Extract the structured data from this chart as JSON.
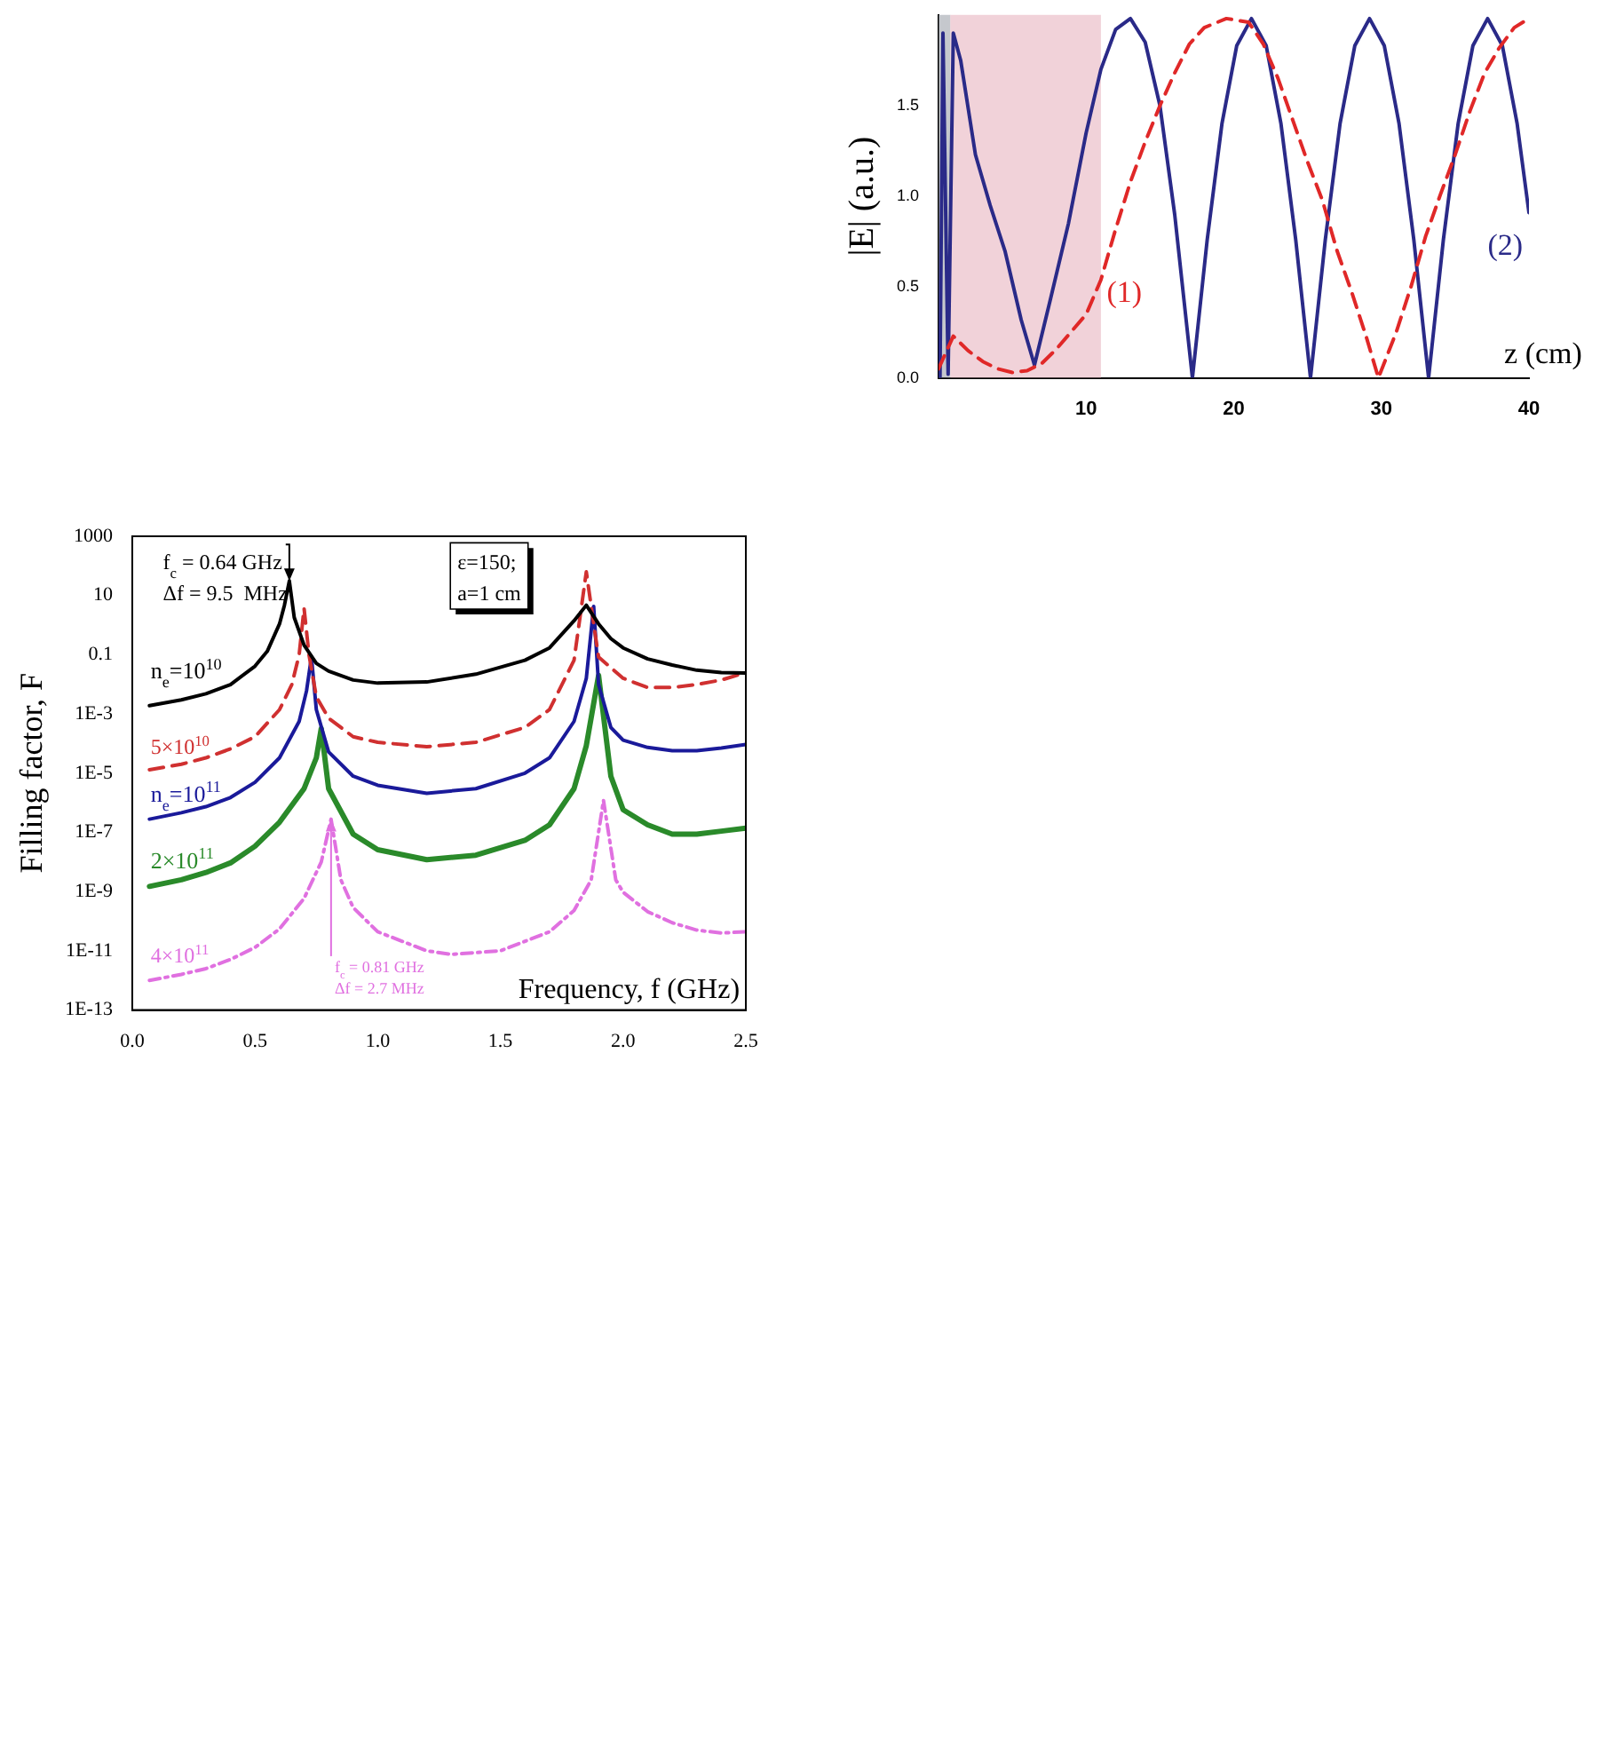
{
  "chart_data": [
    {
      "type": "line",
      "xlabel": "Frequency, f (GHz)",
      "ylabel": "Filling factor, F",
      "log": "y",
      "xlim": [
        0,
        2.5
      ],
      "xticks": [
        {
          "value": 0,
          "label": "0.0"
        },
        {
          "value": 0.5,
          "label": "0.5"
        },
        {
          "value": 1,
          "label": "1.0"
        },
        {
          "value": 1.5,
          "label": "1.5"
        },
        {
          "value": 2,
          "label": "2.0"
        },
        {
          "value": 2.5,
          "label": "2.5"
        }
      ],
      "ylim": [
        1e-13,
        1000
      ],
      "yticks": [
        {
          "value": 1e-13,
          "label": "1E-13"
        },
        {
          "value": 1e-11,
          "label": "1E-11"
        },
        {
          "value": 1e-09,
          "label": "1E-9"
        },
        {
          "value": 1e-07,
          "label": "1E-7"
        },
        {
          "value": 1e-05,
          "label": "1E-5"
        },
        {
          "value": 0.001,
          "label": "1E-3"
        },
        0.1,
        10,
        1000
      ],
      "grid": false,
      "legend": false,
      "marker": "none",
      "annotations": [
        {
          "text": "f$_{c}$ = 0.64 GHz",
          "x": 0.64,
          "y": 31
        },
        "Δf = 9.5  MHz",
        "ε=150;",
        "a=1 cm",
        {
          "text": "f$_{c}$ = 0.81 GHz",
          "x": 0.81,
          "y": 2.8e-07
        },
        "Δf = 2.7 MHz"
      ],
      "series": [
        {
          "name": "n$_{e}$=10$^{10}$",
          "color": "#000000",
          "line_style": "solid",
          "x": [
            0.07,
            0.2,
            0.3,
            0.4,
            0.5,
            0.55,
            0.6,
            0.62,
            0.64,
            0.66,
            0.7,
            0.75,
            0.8,
            0.9,
            1.0,
            1.2,
            1.4,
            1.6,
            1.7,
            1.8,
            1.85,
            1.9,
            1.95,
            2.0,
            2.1,
            2.2,
            2.3,
            2.4,
            2.5
          ],
          "values": [
            0.0019,
            0.003,
            0.0048,
            0.0098,
            0.041,
            0.13,
            1.1,
            4.7,
            31,
            1.8,
            0.21,
            0.051,
            0.028,
            0.014,
            0.011,
            0.012,
            0.022,
            0.065,
            0.17,
            1.4,
            4.7,
            1.1,
            0.35,
            0.17,
            0.072,
            0.045,
            0.03,
            0.025,
            0.024
          ]
        },
        {
          "name": "5×10$^{10}$",
          "color": "#d03030",
          "line_style": "dashed",
          "x": [
            0.07,
            0.2,
            0.3,
            0.4,
            0.5,
            0.6,
            0.65,
            0.68,
            0.7,
            0.72,
            0.75,
            0.8,
            0.9,
            1.0,
            1.2,
            1.4,
            1.6,
            1.7,
            1.8,
            1.85,
            1.88,
            1.9,
            2.0,
            2.1,
            2.2,
            2.3,
            2.4,
            2.5
          ],
          "values": [
            1.3e-05,
            2e-05,
            3.3e-05,
            6.6e-05,
            0.00017,
            0.0014,
            0.0098,
            0.1,
            3.7,
            0.1,
            0.0038,
            0.00072,
            0.00017,
            0.00011,
            7.8e-05,
            0.00011,
            0.00035,
            0.0014,
            0.065,
            63,
            1.1,
            0.083,
            0.016,
            0.0078,
            0.0078,
            0.0098,
            0.014,
            0.025
          ]
        },
        {
          "name": "n$_{e}$=10$^{11}$",
          "color": "#1a1a9a",
          "line_style": "solid",
          "x": [
            0.07,
            0.2,
            0.3,
            0.4,
            0.5,
            0.6,
            0.68,
            0.71,
            0.73,
            0.75,
            0.8,
            0.9,
            1.0,
            1.2,
            1.4,
            1.6,
            1.7,
            1.8,
            1.85,
            1.88,
            1.9,
            1.95,
            2.0,
            2.1,
            2.2,
            2.3,
            2.4,
            2.5
          ],
          "values": [
            2.8e-07,
            4.6e-07,
            7.4e-07,
            1.5e-06,
            4.9e-06,
            3.3e-05,
            0.00056,
            0.006,
            0.083,
            0.0014,
            5.2e-05,
            7.9e-06,
            3.9e-06,
            2.1e-06,
            3e-06,
            1e-05,
            3.3e-05,
            0.00056,
            0.016,
            4.3,
            0.0098,
            0.00035,
            0.00013,
            7.4e-05,
            5.7e-05,
            5.7e-05,
            7.1e-05,
            9.3e-05
          ]
        },
        {
          "name": "2×10$^{11}$",
          "color": "#2a8a2a",
          "line_style": "solid",
          "x": [
            0.07,
            0.2,
            0.3,
            0.4,
            0.5,
            0.6,
            0.7,
            0.75,
            0.77,
            0.8,
            0.9,
            1.0,
            1.2,
            1.4,
            1.6,
            1.7,
            1.8,
            1.85,
            1.9,
            1.95,
            2.0,
            2.1,
            2.2,
            2.3,
            2.4,
            2.5
          ],
          "values": [
            1.5e-09,
            2.5e-09,
            4.4e-09,
            9.3e-09,
            3.4e-08,
            2.2e-07,
            3e-06,
            3.3e-05,
            0.00032,
            3e-06,
            8.7e-08,
            2.6e-08,
            1.2e-08,
            1.7e-08,
            5.4e-08,
            1.8e-07,
            3e-06,
            8.5e-05,
            0.02,
            7.9e-06,
            5.8e-07,
            1.8e-07,
            8.7e-08,
            8.7e-08,
            1.1e-07,
            1.4e-07
          ]
        },
        {
          "name": "4×10$^{11}$",
          "color": "#e070e0",
          "line_style": "dotted",
          "x": [
            0.07,
            0.2,
            0.3,
            0.4,
            0.5,
            0.6,
            0.7,
            0.77,
            0.81,
            0.85,
            0.9,
            1.0,
            1.2,
            1.3,
            1.5,
            1.7,
            1.8,
            1.87,
            1.92,
            1.97,
            2.0,
            2.1,
            2.2,
            2.3,
            2.4,
            2.5
          ],
          "values": [
            1e-12,
            1.6e-12,
            2.5e-12,
            5.1e-12,
            1.3e-11,
            5.5e-11,
            5.9e-10,
            1e-08,
            2.8e-07,
            2.5e-09,
            2.9e-10,
            4.4e-11,
            1e-11,
            7.6e-12,
            1e-11,
            4.4e-11,
            2.3e-10,
            2.5e-09,
            1.2e-06,
            2.5e-09,
            9.5e-10,
            2.1e-10,
            8.9e-11,
            5e-11,
            4e-11,
            4.4e-11
          ]
        }
      ]
    },
    {
      "type": "line",
      "xlabel": "z (cm)",
      "ylabel": "|E| (a.u.)",
      "xlim": [
        0,
        40
      ],
      "xticks": [
        10,
        20,
        30,
        40
      ],
      "ylim": [
        0,
        2.0
      ],
      "yticks": [
        {
          "value": 0,
          "label": "0.0"
        },
        {
          "value": 0.5,
          "label": "0.5"
        },
        {
          "value": 1,
          "label": "1.0"
        },
        {
          "value": 1.5,
          "label": "1.5"
        }
      ],
      "grid": false,
      "legend": false,
      "marker": "none",
      "bands": [
        {
          "axis": "x",
          "from": 0,
          "to": 0.8,
          "color": "#9ea4ac"
        },
        {
          "axis": "x",
          "from": 0.8,
          "to": 11,
          "color": "#e8b4bf"
        }
      ],
      "series": [
        {
          "name": "(1)",
          "color": "#e02828",
          "line_style": "dashed",
          "x": [
            0,
            1,
            2,
            3,
            4,
            5,
            6,
            7,
            8,
            10,
            11,
            12,
            13,
            14,
            15,
            16,
            17,
            18,
            19.5,
            21,
            22,
            23,
            24,
            25,
            26,
            27,
            28,
            29,
            29.8,
            31,
            32,
            33,
            34,
            35,
            36,
            37,
            38,
            39,
            40
          ],
          "values": [
            0.05,
            0.23,
            0.15,
            0.09,
            0.05,
            0.03,
            0.04,
            0.08,
            0.16,
            0.35,
            0.54,
            0.82,
            1.08,
            1.3,
            1.5,
            1.68,
            1.84,
            1.93,
            1.98,
            1.96,
            1.84,
            1.65,
            1.42,
            1.19,
            0.98,
            0.7,
            0.47,
            0.22,
            0,
            0.25,
            0.5,
            0.78,
            1.01,
            1.23,
            1.47,
            1.68,
            1.82,
            1.93,
            1.98
          ]
        },
        {
          "name": "(2)",
          "color": "#2a2a88",
          "line_style": "solid",
          "x": [
            0.1,
            0.3,
            0.65,
            1.0,
            1.5,
            2.5,
            3.5,
            4.5,
            5.6,
            6.5,
            7.6,
            8.8,
            10,
            11,
            12,
            13,
            14,
            15,
            16,
            17.2,
            18.2,
            19.2,
            20.2,
            21.2,
            22.2,
            23.2,
            24.2,
            25.2,
            26.2,
            27.2,
            28.2,
            29.2,
            30.2,
            31.2,
            32.2,
            33.2,
            34.2,
            35.2,
            36.2,
            37.2,
            38.2,
            39.2,
            40
          ],
          "values": [
            0,
            1.9,
            0.02,
            1.9,
            1.75,
            1.23,
            0.95,
            0.7,
            0.32,
            0.07,
            0.44,
            0.85,
            1.35,
            1.7,
            1.92,
            1.98,
            1.85,
            1.5,
            0.9,
            0,
            0.76,
            1.4,
            1.83,
            1.98,
            1.83,
            1.4,
            0.76,
            0,
            0.76,
            1.4,
            1.83,
            1.98,
            1.83,
            1.4,
            0.76,
            0,
            0.76,
            1.4,
            1.83,
            1.98,
            1.83,
            1.4,
            0.91
          ]
        }
      ]
    }
  ]
}
